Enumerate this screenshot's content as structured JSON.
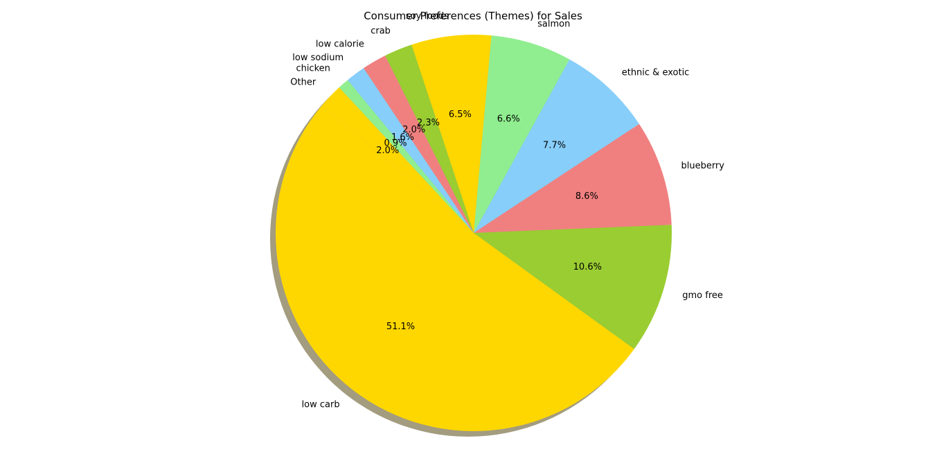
{
  "chart_data": {
    "type": "pie",
    "title": "Consumer Preferences (Themes) for Sales",
    "slices": [
      {
        "label": "low carb",
        "value": 51.1,
        "pct_label": "51.1%",
        "color": "#ffd700"
      },
      {
        "label": "gmo free",
        "value": 10.6,
        "pct_label": "10.6%",
        "color": "#9acd32"
      },
      {
        "label": "blueberry",
        "value": 8.6,
        "pct_label": "8.6%",
        "color": "#f08080"
      },
      {
        "label": "ethnic & exotic",
        "value": 7.7,
        "pct_label": "7.7%",
        "color": "#87cefa"
      },
      {
        "label": "salmon",
        "value": 6.6,
        "pct_label": "6.6%",
        "color": "#90ee90"
      },
      {
        "label": "soy foods",
        "value": 6.5,
        "pct_label": "6.5%",
        "color": "#ffd700"
      },
      {
        "label": "crab",
        "value": 2.3,
        "pct_label": "2.3%",
        "color": "#9acd32"
      },
      {
        "label": "low calorie",
        "value": 2.0,
        "pct_label": "2.0%",
        "color": "#f08080"
      },
      {
        "label": "low sodium",
        "value": 1.6,
        "pct_label": "1.6%",
        "color": "#87cefa"
      },
      {
        "label": "chicken",
        "value": 0.9,
        "pct_label": "0.9%",
        "color": "#90ee90"
      },
      {
        "label": "Other",
        "value": 2.0,
        "pct_label": "2.0%",
        "color": "#ffd700"
      }
    ],
    "start_angle_deg": 140,
    "direction": "counterclockwise",
    "shadow": true,
    "shadow_color": "#a39c7f"
  }
}
